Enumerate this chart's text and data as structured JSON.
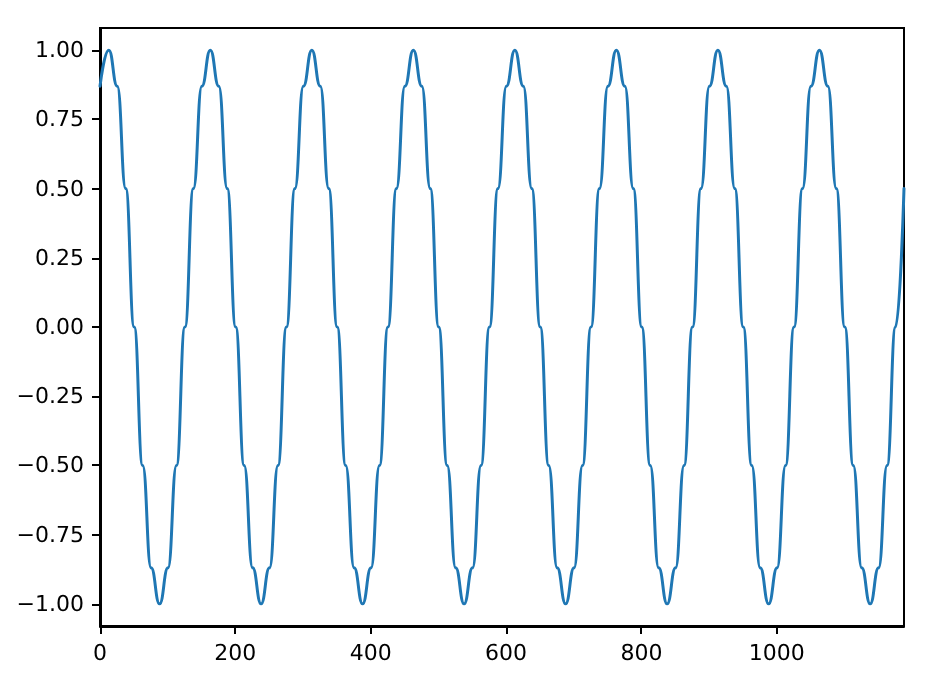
{
  "chart_data": {
    "type": "line",
    "x": [
      0,
      13,
      25.5,
      38,
      50.5,
      63,
      75.5,
      88,
      100.5,
      113,
      125.5,
      138,
      150.5,
      163,
      175.5,
      188,
      200.5,
      213,
      225.5,
      238,
      250.5,
      263,
      275.5,
      288,
      300.5,
      313,
      325.5,
      338,
      350.5,
      363,
      375.5,
      388,
      400.5,
      413,
      425.5,
      438,
      450.5,
      463,
      475.5,
      488,
      500.5,
      513,
      525.5,
      538,
      550.5,
      563,
      575.5,
      588,
      600.5,
      613,
      625.5,
      638,
      650.5,
      663,
      675.5,
      688,
      700.5,
      713,
      725.5,
      738,
      750.5,
      763,
      775.5,
      788,
      800.5,
      813,
      825.5,
      838,
      850.5,
      863,
      875.5,
      888,
      900.5,
      913,
      925.5,
      938,
      950.5,
      963,
      975.5,
      988,
      1000.5,
      1013,
      1025.5,
      1038,
      1050.5,
      1063,
      1075.5,
      1088,
      1100.5,
      1113,
      1125.5,
      1138,
      1150.5,
      1163,
      1175.5,
      1188
    ],
    "series": [
      {
        "color": "#1f77b4",
        "values": [
          0.87,
          1,
          0.87,
          0.5,
          0,
          -0.5,
          -0.87,
          -1,
          -0.87,
          -0.5,
          0,
          0.5,
          0.87,
          1,
          0.87,
          0.5,
          0,
          -0.5,
          -0.87,
          -1,
          -0.87,
          -0.5,
          0,
          0.5,
          0.87,
          1,
          0.87,
          0.5,
          0,
          -0.5,
          -0.87,
          -1,
          -0.87,
          -0.5,
          0,
          0.5,
          0.87,
          1,
          0.87,
          0.5,
          0,
          -0.5,
          -0.87,
          -1,
          -0.87,
          -0.5,
          0,
          0.5,
          0.87,
          1,
          0.87,
          0.5,
          0,
          -0.5,
          -0.87,
          -1,
          -0.87,
          -0.5,
          0,
          0.5,
          0.87,
          1,
          0.87,
          0.5,
          0,
          -0.5,
          -0.87,
          -1,
          -0.87,
          -0.5,
          0,
          0.5,
          0.87,
          1,
          0.87,
          0.5,
          0,
          -0.5,
          -0.87,
          -1,
          -0.87,
          -0.5,
          0,
          0.5,
          0.87,
          1,
          0.87,
          0.5,
          0,
          -0.5,
          -0.87,
          -1,
          -0.87,
          -0.5,
          0,
          0.5
        ]
      }
    ],
    "xlim": [
      0,
      1188
    ],
    "xticks": [
      0,
      200,
      400,
      600,
      800,
      1000
    ],
    "ylim": [
      -1.08,
      1.08
    ],
    "yticks": [
      {
        "value": -1,
        "label": "−1.00"
      },
      {
        "value": -0.75,
        "label": "−0.75"
      },
      {
        "value": -0.5,
        "label": "−0.50"
      },
      {
        "value": -0.25,
        "label": "−0.25"
      },
      {
        "value": 0,
        "label": "0.00"
      },
      {
        "value": 0.25,
        "label": "0.25"
      },
      {
        "value": 0.5,
        "label": "0.50"
      },
      {
        "value": 0.75,
        "label": "0.75"
      },
      {
        "value": 1,
        "label": "1.00"
      }
    ],
    "grid": false,
    "marker": "none",
    "line_style": "solid"
  }
}
